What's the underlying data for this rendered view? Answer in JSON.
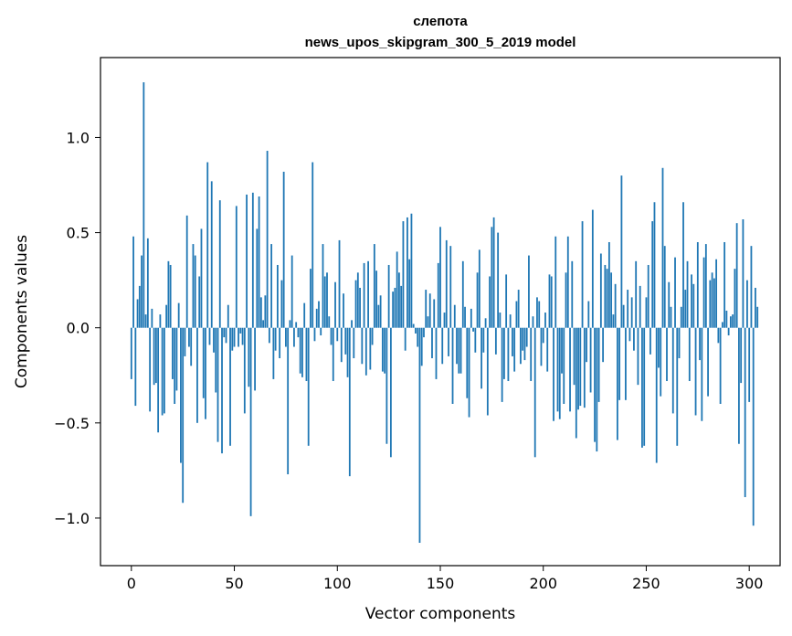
{
  "chart_data": {
    "type": "bar",
    "title": "слепота",
    "subtitle": "news_upos_skipgram_300_5_2019 model",
    "xlabel": "Vector components",
    "ylabel": "Components values",
    "xlim": [
      -15,
      315
    ],
    "ylim": [
      -1.25,
      1.42
    ],
    "xticks": [
      0,
      50,
      100,
      150,
      200,
      250,
      300
    ],
    "xtick_labels": [
      "0",
      "50",
      "100",
      "150",
      "200",
      "250",
      "300"
    ],
    "yticks": [
      -1.0,
      -0.5,
      0.0,
      0.5,
      1.0
    ],
    "ytick_labels": [
      "−1.0",
      "−0.5",
      "0.0",
      "0.5",
      "1.0"
    ],
    "grid": false,
    "bar_color": "#1f77b4",
    "values": [
      -0.27,
      0.48,
      -0.41,
      0.15,
      0.22,
      0.38,
      1.29,
      0.07,
      0.47,
      -0.44,
      0.1,
      -0.3,
      -0.29,
      -0.55,
      0.07,
      -0.46,
      -0.45,
      0.12,
      0.35,
      0.33,
      -0.27,
      -0.4,
      -0.33,
      0.13,
      -0.71,
      -0.92,
      -0.15,
      0.59,
      -0.1,
      -0.2,
      0.44,
      0.38,
      -0.5,
      0.27,
      0.52,
      -0.37,
      -0.48,
      0.87,
      -0.09,
      0.77,
      -0.13,
      -0.34,
      -0.6,
      0.67,
      -0.66,
      -0.05,
      -0.08,
      0.12,
      -0.62,
      -0.12,
      -0.1,
      0.64,
      -0.1,
      -0.03,
      -0.09,
      -0.45,
      0.7,
      -0.31,
      -0.99,
      0.71,
      -0.33,
      0.52,
      0.69,
      0.16,
      0.04,
      0.17,
      0.93,
      -0.08,
      0.44,
      -0.27,
      -0.12,
      0.33,
      -0.16,
      0.25,
      0.82,
      -0.1,
      -0.77,
      0.04,
      0.38,
      -0.1,
      0.03,
      -0.05,
      -0.24,
      -0.26,
      0.13,
      -0.28,
      -0.62,
      0.31,
      0.87,
      -0.07,
      0.1,
      0.14,
      -0.04,
      0.44,
      0.27,
      0.29,
      0.06,
      -0.09,
      -0.28,
      0.24,
      -0.07,
      0.46,
      -0.18,
      0.18,
      -0.14,
      -0.26,
      -0.78,
      0.04,
      -0.16,
      0.25,
      0.29,
      0.21,
      -0.19,
      0.34,
      -0.25,
      0.35,
      -0.22,
      -0.09,
      0.44,
      0.3,
      0.12,
      0.17,
      -0.23,
      -0.24,
      -0.61,
      0.33,
      -0.68,
      0.19,
      0.21,
      0.4,
      0.29,
      0.22,
      0.56,
      -0.12,
      0.58,
      0.36,
      0.6,
      0.02,
      -0.03,
      -0.1,
      -1.13,
      -0.2,
      -0.05,
      0.2,
      0.06,
      0.18,
      -0.16,
      0.15,
      -0.27,
      0.34,
      0.53,
      -0.19,
      0.08,
      0.46,
      -0.15,
      0.43,
      -0.4,
      0.12,
      -0.19,
      -0.24,
      -0.24,
      0.35,
      0.11,
      -0.37,
      -0.47,
      0.1,
      -0.02,
      -0.13,
      0.29,
      0.41,
      -0.32,
      -0.13,
      0.05,
      -0.46,
      0.27,
      0.53,
      0.58,
      -0.14,
      0.5,
      0.08,
      -0.39,
      -0.27,
      0.28,
      -0.28,
      0.07,
      -0.15,
      -0.23,
      0.14,
      0.2,
      -0.19,
      -0.12,
      -0.17,
      -0.1,
      0.38,
      -0.28,
      0.06,
      -0.68,
      0.16,
      0.14,
      -0.2,
      -0.08,
      0.08,
      -0.23,
      0.28,
      0.27,
      -0.49,
      0.48,
      -0.44,
      -0.48,
      -0.24,
      -0.4,
      0.29,
      0.48,
      -0.44,
      0.35,
      -0.3,
      -0.58,
      -0.43,
      -0.41,
      0.56,
      -0.42,
      -0.18,
      0.14,
      -0.34,
      0.62,
      -0.6,
      -0.65,
      -0.39,
      0.39,
      -0.18,
      0.33,
      0.31,
      0.45,
      0.29,
      0.07,
      0.23,
      -0.59,
      -0.38,
      0.8,
      0.12,
      -0.38,
      0.2,
      -0.07,
      0.16,
      -0.12,
      0.35,
      -0.3,
      0.22,
      -0.63,
      -0.62,
      0.16,
      0.33,
      -0.14,
      0.56,
      0.66,
      -0.71,
      -0.21,
      -0.36,
      0.84,
      0.43,
      -0.28,
      0.24,
      0.11,
      -0.45,
      0.37,
      -0.62,
      -0.16,
      0.11,
      0.66,
      0.2,
      0.35,
      -0.28,
      0.28,
      0.23,
      -0.46,
      0.45,
      -0.17,
      -0.49,
      0.37,
      0.44,
      -0.36,
      0.25,
      0.29,
      0.26,
      0.36,
      -0.08,
      -0.4,
      0.03,
      0.45,
      0.09,
      -0.04,
      0.06,
      0.07,
      0.31,
      0.55,
      -0.61,
      -0.29,
      0.57,
      -0.89,
      0.25,
      -0.39,
      0.43,
      -1.04,
      0.21,
      0.11
    ]
  }
}
